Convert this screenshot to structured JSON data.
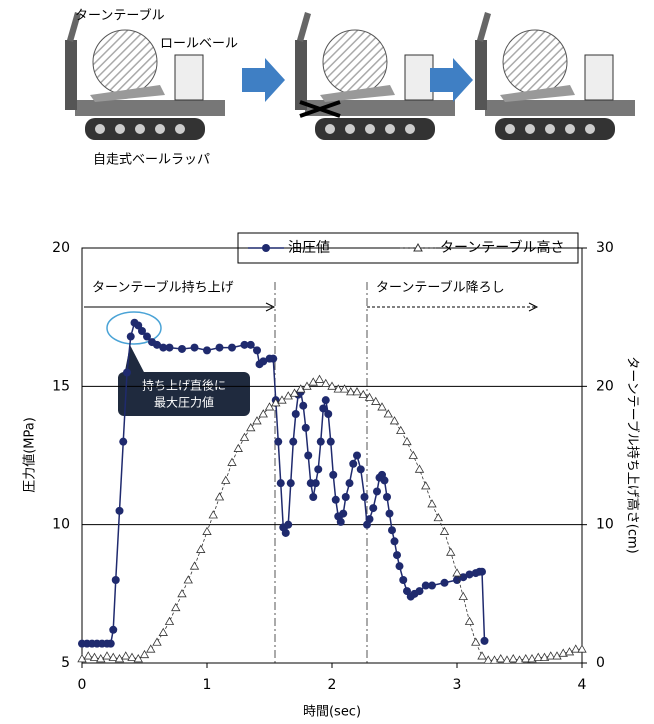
{
  "illustration": {
    "labels": [
      "ターンテーブル",
      "ロールベール",
      "自走式ベールラッパ"
    ]
  },
  "chart_data": {
    "type": "line",
    "xlabel": "時間(sec)",
    "ylabel": "圧力値(MPa)",
    "y2label": "ターンテーブル持ち上げ高さ(cm)",
    "xlim": [
      0,
      4
    ],
    "xticks": [
      0,
      1,
      2,
      3,
      4
    ],
    "ylim": [
      5,
      20
    ],
    "yticks": [
      5,
      10,
      15,
      20
    ],
    "y2lim": [
      0,
      30
    ],
    "y2ticks": [
      0,
      10,
      20,
      30
    ],
    "grid": true,
    "legend": "top",
    "annotations": [
      "ターンテーブル持ち上げ",
      "ターンテーブル降ろし"
    ],
    "callout": [
      "持ち上げ直後に",
      "最大圧力値"
    ],
    "series": [
      {
        "name": "油圧値",
        "color": "#1f2a6e",
        "marker": "circle",
        "x": [
          0,
          0.04,
          0.08,
          0.12,
          0.16,
          0.2,
          0.23,
          0.25,
          0.27,
          0.3,
          0.33,
          0.36,
          0.39,
          0.42,
          0.45,
          0.48,
          0.52,
          0.56,
          0.6,
          0.65,
          0.7,
          0.8,
          0.9,
          1.0,
          1.1,
          1.2,
          1.3,
          1.35,
          1.4,
          1.42,
          1.45,
          1.5,
          1.53,
          1.55,
          1.57,
          1.59,
          1.61,
          1.63,
          1.65,
          1.67,
          1.69,
          1.71,
          1.73,
          1.75,
          1.77,
          1.79,
          1.81,
          1.83,
          1.85,
          1.87,
          1.89,
          1.91,
          1.93,
          1.95,
          1.97,
          1.99,
          2.01,
          2.03,
          2.05,
          2.07,
          2.09,
          2.11,
          2.14,
          2.17,
          2.2,
          2.23,
          2.26,
          2.28,
          2.3,
          2.33,
          2.36,
          2.38,
          2.4,
          2.42,
          2.44,
          2.46,
          2.48,
          2.5,
          2.52,
          2.54,
          2.57,
          2.6,
          2.63,
          2.66,
          2.7,
          2.75,
          2.8,
          2.9,
          3.0,
          3.05,
          3.1,
          3.15,
          3.18,
          3.2,
          3.22
        ],
        "values": [
          5.7,
          5.7,
          5.7,
          5.7,
          5.7,
          5.7,
          5.7,
          6.2,
          8.0,
          10.5,
          13.0,
          15.5,
          16.8,
          17.3,
          17.2,
          17.0,
          16.8,
          16.6,
          16.5,
          16.4,
          16.4,
          16.35,
          16.4,
          16.3,
          16.4,
          16.4,
          16.5,
          16.5,
          16.3,
          15.8,
          15.9,
          16.0,
          16.0,
          14.5,
          13.0,
          11.5,
          9.9,
          9.7,
          10.0,
          11.5,
          13.0,
          14.0,
          14.7,
          14.8,
          14.3,
          13.5,
          12.5,
          11.5,
          11.0,
          11.5,
          12.0,
          13.0,
          14.2,
          14.5,
          14.0,
          13.0,
          11.8,
          10.9,
          10.3,
          10.1,
          10.4,
          11.0,
          11.5,
          12.2,
          12.5,
          12.0,
          11.0,
          10.0,
          10.2,
          10.6,
          11.2,
          11.7,
          11.8,
          11.6,
          11.0,
          10.4,
          9.8,
          9.4,
          8.9,
          8.5,
          8.0,
          7.6,
          7.4,
          7.5,
          7.6,
          7.8,
          7.8,
          7.9,
          8.0,
          8.1,
          8.2,
          8.25,
          8.3,
          8.3,
          5.8
        ]
      },
      {
        "name": "ターンテーブル高さ",
        "color": "#333333",
        "marker": "triangle",
        "axis": "y2",
        "x": [
          0,
          0.05,
          0.1,
          0.15,
          0.2,
          0.25,
          0.3,
          0.35,
          0.4,
          0.45,
          0.5,
          0.55,
          0.6,
          0.65,
          0.7,
          0.75,
          0.8,
          0.85,
          0.9,
          0.95,
          1.0,
          1.05,
          1.1,
          1.15,
          1.2,
          1.25,
          1.3,
          1.35,
          1.4,
          1.45,
          1.5,
          1.55,
          1.6,
          1.65,
          1.7,
          1.75,
          1.8,
          1.85,
          1.9,
          1.95,
          2.0,
          2.05,
          2.1,
          2.15,
          2.2,
          2.25,
          2.3,
          2.35,
          2.4,
          2.45,
          2.5,
          2.55,
          2.6,
          2.65,
          2.7,
          2.75,
          2.8,
          2.85,
          2.9,
          2.95,
          3.0,
          3.05,
          3.1,
          3.15,
          3.2,
          3.25,
          3.3,
          3.35,
          3.4,
          3.45,
          3.5,
          3.55,
          3.6,
          3.65,
          3.7,
          3.75,
          3.8,
          3.85,
          3.9,
          3.95,
          4.0
        ],
        "values": [
          0.3,
          0.5,
          0.4,
          0.3,
          0.5,
          0.4,
          0.3,
          0.5,
          0.4,
          0.3,
          0.6,
          1.0,
          1.5,
          2.2,
          3.0,
          4.0,
          5.0,
          6.0,
          7.0,
          8.2,
          9.5,
          10.7,
          12.0,
          13.2,
          14.5,
          15.5,
          16.3,
          17.0,
          17.5,
          18.0,
          18.5,
          18.8,
          19.0,
          19.3,
          19.5,
          19.8,
          20.0,
          20.3,
          20.5,
          20.2,
          20.0,
          19.8,
          19.8,
          19.6,
          19.6,
          19.4,
          19.2,
          18.9,
          18.5,
          18.0,
          17.5,
          16.8,
          16.0,
          15.0,
          14.0,
          12.8,
          11.5,
          10.5,
          9.5,
          8.0,
          6.5,
          4.8,
          3.0,
          1.5,
          0.5,
          0.2,
          0.2,
          0.3,
          0.2,
          0.3,
          0.2,
          0.3,
          0.3,
          0.4,
          0.4,
          0.5,
          0.5,
          0.7,
          0.8,
          1.0,
          1.0
        ]
      }
    ]
  }
}
